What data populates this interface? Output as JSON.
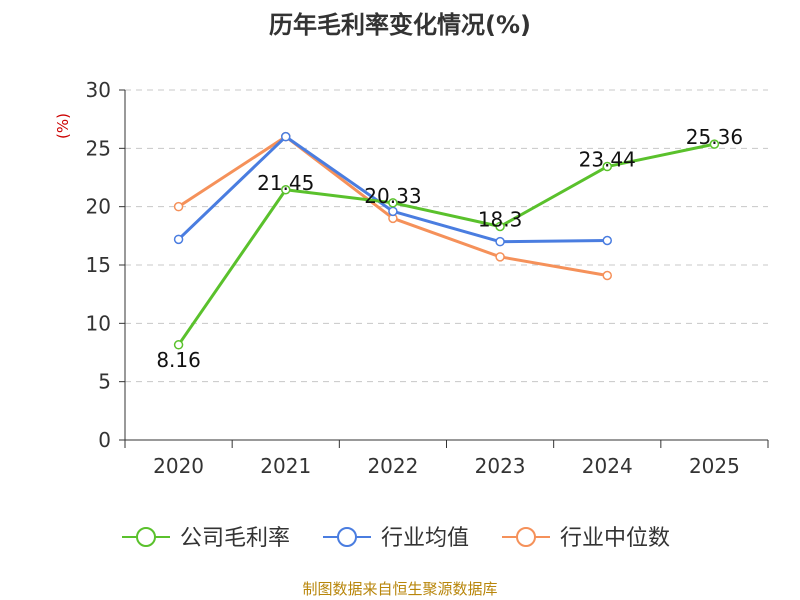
{
  "chart_data": {
    "type": "line",
    "title": "历年毛利率变化情况(%)",
    "ylabel": "(%)",
    "xlabel": "",
    "categories": [
      "2020",
      "2021",
      "2022",
      "2023",
      "2024",
      "2025"
    ],
    "ylim": [
      0,
      30
    ],
    "yticks": [
      0,
      5,
      10,
      15,
      20,
      25,
      30
    ],
    "grid": true,
    "legend_position": "bottom",
    "series": [
      {
        "name": "公司毛利率",
        "color": "#5ac12c",
        "values": [
          8.16,
          21.45,
          20.33,
          18.3,
          23.44,
          25.36
        ],
        "labels": [
          "8.16",
          "21.45",
          "20.33",
          "18.3",
          "23.44",
          "25.36"
        ]
      },
      {
        "name": "行业均值",
        "color": "#4a7de0",
        "values": [
          17.2,
          26.0,
          19.6,
          17.0,
          17.1,
          null
        ]
      },
      {
        "name": "行业中位数",
        "color": "#f5915a",
        "values": [
          20.0,
          26.0,
          19.0,
          15.7,
          14.1,
          null
        ]
      }
    ],
    "source": "制图数据来自恒生聚源数据库"
  }
}
